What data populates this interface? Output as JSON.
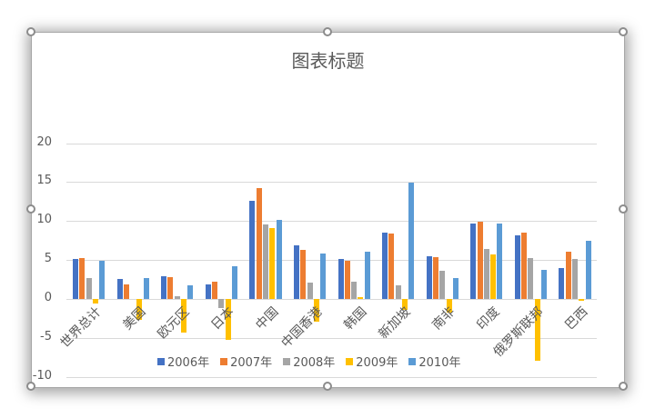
{
  "chart_data": {
    "type": "bar",
    "title": "图表标题",
    "xlabel": "",
    "ylabel": "",
    "ylim": [
      -10,
      20
    ],
    "yticks": [
      -10,
      -5,
      0,
      5,
      10,
      15,
      20
    ],
    "grid": true,
    "legend_position": "bottom",
    "categories": [
      "世界总计",
      "美国",
      "欧元区",
      "日本",
      "中国",
      "中国香港",
      "韩国",
      "新加坡",
      "南非",
      "印度",
      "俄罗斯联邦",
      "巴西"
    ],
    "series": [
      {
        "name": "2006年",
        "color": "#4472C4",
        "values": [
          5.1,
          2.6,
          2.9,
          1.9,
          12.6,
          6.9,
          5.1,
          8.5,
          5.5,
          9.7,
          8.2,
          4.0
        ]
      },
      {
        "name": "2007年",
        "color": "#ED7D31",
        "values": [
          5.3,
          1.9,
          2.8,
          2.2,
          14.2,
          6.3,
          4.9,
          8.4,
          5.4,
          9.9,
          8.5,
          6.1
        ]
      },
      {
        "name": "2008年",
        "color": "#A5A5A5",
        "values": [
          2.7,
          0.0,
          0.4,
          -1.2,
          9.6,
          2.1,
          2.2,
          1.8,
          3.6,
          6.4,
          5.2,
          5.1
        ]
      },
      {
        "name": "2009年",
        "color": "#FFC000",
        "values": [
          -0.6,
          -2.7,
          -4.3,
          -5.2,
          9.1,
          -2.9,
          0.2,
          -1.4,
          -1.8,
          5.7,
          -7.9,
          -0.2
        ]
      },
      {
        "name": "2010年",
        "color": "#5B9BD5",
        "values": [
          4.9,
          2.7,
          1.8,
          4.2,
          10.2,
          5.8,
          6.1,
          14.9,
          2.7,
          9.7,
          3.7,
          7.5
        ]
      }
    ]
  },
  "icons": {
    "resize_handle": "circle-handle"
  }
}
